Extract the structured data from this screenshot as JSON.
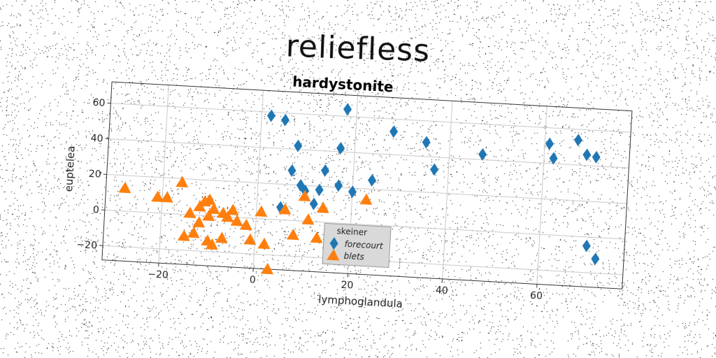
{
  "figure_title": "reliefless",
  "chart_data": {
    "type": "scatter",
    "title": "hardystonite",
    "xlabel": "lymphoglandula",
    "ylabel": "euptelea",
    "xlim": [
      -32,
      78
    ],
    "ylim": [
      -28,
      72
    ],
    "xticks": [
      -20,
      0,
      20,
      40,
      60
    ],
    "yticks": [
      -20,
      0,
      20,
      40,
      60
    ],
    "grid": true,
    "legend": {
      "title": "skeiner",
      "placement": "bottom-center"
    },
    "series": [
      {
        "name": "forecourt",
        "marker": "diamond",
        "color": "#1f77b4",
        "points": [
          [
            2,
            58
          ],
          [
            5,
            56
          ],
          [
            18,
            64
          ],
          [
            8,
            42
          ],
          [
            17,
            42
          ],
          [
            7,
            28
          ],
          [
            9,
            20
          ],
          [
            10,
            17
          ],
          [
            14,
            29
          ],
          [
            13,
            18
          ],
          [
            17,
            21
          ],
          [
            20,
            18
          ],
          [
            24,
            25
          ],
          [
            28,
            53
          ],
          [
            35,
            48
          ],
          [
            37,
            33
          ],
          [
            47,
            43
          ],
          [
            61,
            51
          ],
          [
            62,
            43
          ],
          [
            67,
            54
          ],
          [
            69,
            46
          ],
          [
            71,
            45
          ],
          [
            70,
            -5
          ],
          [
            72,
            -12
          ],
          [
            12,
            10
          ],
          [
            5,
            7
          ]
        ]
      },
      {
        "name": "blets",
        "marker": "triangle",
        "color": "#ff7f0e",
        "points": [
          [
            -28,
            13
          ],
          [
            -21,
            9
          ],
          [
            -19,
            9
          ],
          [
            -16,
            18
          ],
          [
            -14,
            1
          ],
          [
            -12,
            5
          ],
          [
            -11,
            8
          ],
          [
            -10,
            9
          ],
          [
            -9,
            4
          ],
          [
            -10,
            0
          ],
          [
            -12,
            -4
          ],
          [
            -7,
            2
          ],
          [
            -6,
            0
          ],
          [
            -5,
            4
          ],
          [
            -2,
            -4
          ],
          [
            -1,
            -12
          ],
          [
            1,
            4
          ],
          [
            2,
            -14
          ],
          [
            -15,
            -12
          ],
          [
            -10,
            -14
          ],
          [
            -7,
            -12
          ],
          [
            -9,
            -16
          ],
          [
            3,
            -28
          ],
          [
            6,
            6
          ],
          [
            8,
            -8
          ],
          [
            10,
            14
          ],
          [
            11,
            1
          ],
          [
            13,
            -9
          ],
          [
            14,
            8
          ],
          [
            23,
            14
          ],
          [
            -4,
            -2
          ],
          [
            -13,
            -10
          ]
        ]
      }
    ]
  }
}
